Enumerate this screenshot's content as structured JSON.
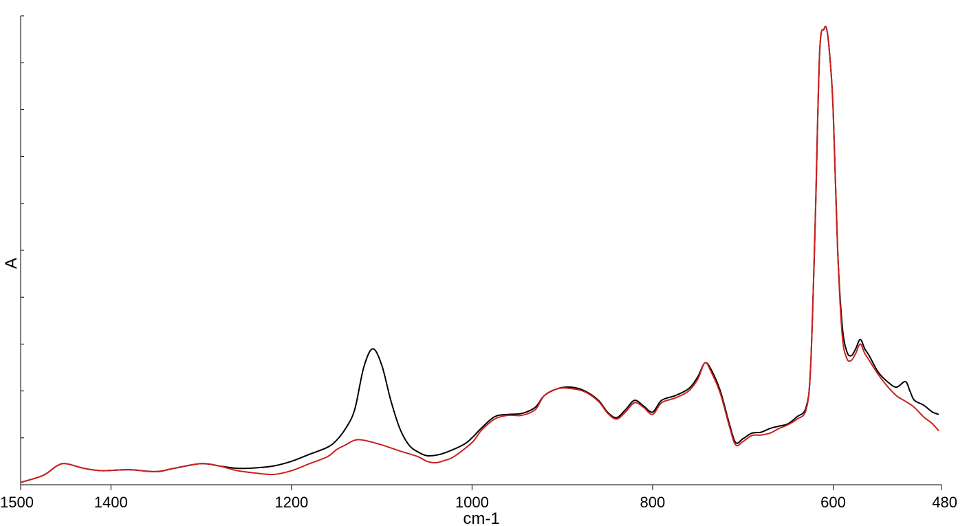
{
  "chart_data": {
    "type": "line",
    "title": "",
    "xlabel": "cm-1",
    "ylabel": "A",
    "xlim": [
      1500,
      480
    ],
    "x_reversed": true,
    "ylim": [
      0,
      1
    ],
    "y_ticks_labeled": false,
    "y_tick_count": 11,
    "grid": false,
    "legend": "none",
    "x_ticks": [
      1500,
      1400,
      1200,
      1000,
      800,
      600,
      480
    ],
    "x_tick_labels": [
      "1500",
      "1400",
      "1200",
      "1000",
      "800",
      "600",
      "480"
    ],
    "series": [
      {
        "color": "#000000",
        "points": [
          [
            1500,
            0.005
          ],
          [
            1475,
            0.02
          ],
          [
            1460,
            0.04
          ],
          [
            1450,
            0.045
          ],
          [
            1430,
            0.035
          ],
          [
            1410,
            0.03
          ],
          [
            1380,
            0.032
          ],
          [
            1350,
            0.028
          ],
          [
            1330,
            0.035
          ],
          [
            1300,
            0.045
          ],
          [
            1280,
            0.04
          ],
          [
            1260,
            0.035
          ],
          [
            1240,
            0.036
          ],
          [
            1220,
            0.04
          ],
          [
            1200,
            0.05
          ],
          [
            1180,
            0.065
          ],
          [
            1160,
            0.08
          ],
          [
            1150,
            0.095
          ],
          [
            1140,
            0.12
          ],
          [
            1130,
            0.16
          ],
          [
            1120,
            0.25
          ],
          [
            1110,
            0.29
          ],
          [
            1100,
            0.255
          ],
          [
            1090,
            0.18
          ],
          [
            1080,
            0.12
          ],
          [
            1070,
            0.085
          ],
          [
            1060,
            0.07
          ],
          [
            1050,
            0.062
          ],
          [
            1040,
            0.063
          ],
          [
            1030,
            0.068
          ],
          [
            1010,
            0.085
          ],
          [
            1000,
            0.1
          ],
          [
            990,
            0.12
          ],
          [
            975,
            0.145
          ],
          [
            960,
            0.15
          ],
          [
            945,
            0.152
          ],
          [
            930,
            0.165
          ],
          [
            920,
            0.19
          ],
          [
            905,
            0.205
          ],
          [
            890,
            0.208
          ],
          [
            875,
            0.2
          ],
          [
            860,
            0.18
          ],
          [
            850,
            0.155
          ],
          [
            840,
            0.143
          ],
          [
            830,
            0.16
          ],
          [
            820,
            0.18
          ],
          [
            810,
            0.168
          ],
          [
            800,
            0.155
          ],
          [
            790,
            0.18
          ],
          [
            775,
            0.19
          ],
          [
            760,
            0.205
          ],
          [
            750,
            0.23
          ],
          [
            742,
            0.26
          ],
          [
            735,
            0.245
          ],
          [
            725,
            0.2
          ],
          [
            715,
            0.13
          ],
          [
            708,
            0.09
          ],
          [
            700,
            0.098
          ],
          [
            690,
            0.11
          ],
          [
            680,
            0.112
          ],
          [
            670,
            0.12
          ],
          [
            660,
            0.125
          ],
          [
            650,
            0.13
          ],
          [
            640,
            0.145
          ],
          [
            630,
            0.165
          ],
          [
            625,
            0.25
          ],
          [
            620,
            0.55
          ],
          [
            615,
            0.92
          ],
          [
            610,
            0.972
          ],
          [
            607,
            0.97
          ],
          [
            604,
            0.92
          ],
          [
            600,
            0.8
          ],
          [
            595,
            0.5
          ],
          [
            590,
            0.34
          ],
          [
            585,
            0.285
          ],
          [
            580,
            0.275
          ],
          [
            575,
            0.29
          ],
          [
            570,
            0.31
          ],
          [
            565,
            0.29
          ],
          [
            560,
            0.275
          ],
          [
            550,
            0.24
          ],
          [
            540,
            0.22
          ],
          [
            530,
            0.208
          ],
          [
            520,
            0.22
          ],
          [
            515,
            0.2
          ],
          [
            510,
            0.18
          ],
          [
            500,
            0.17
          ],
          [
            490,
            0.155
          ],
          [
            483,
            0.15
          ]
        ]
      },
      {
        "color": "#cc2020",
        "points": [
          [
            1500,
            0.005
          ],
          [
            1475,
            0.02
          ],
          [
            1460,
            0.04
          ],
          [
            1450,
            0.045
          ],
          [
            1430,
            0.035
          ],
          [
            1410,
            0.03
          ],
          [
            1380,
            0.032
          ],
          [
            1350,
            0.028
          ],
          [
            1330,
            0.035
          ],
          [
            1300,
            0.045
          ],
          [
            1280,
            0.04
          ],
          [
            1260,
            0.03
          ],
          [
            1240,
            0.025
          ],
          [
            1220,
            0.022
          ],
          [
            1200,
            0.03
          ],
          [
            1180,
            0.045
          ],
          [
            1160,
            0.06
          ],
          [
            1150,
            0.075
          ],
          [
            1140,
            0.085
          ],
          [
            1130,
            0.095
          ],
          [
            1120,
            0.095
          ],
          [
            1100,
            0.085
          ],
          [
            1080,
            0.072
          ],
          [
            1060,
            0.06
          ],
          [
            1050,
            0.05
          ],
          [
            1040,
            0.047
          ],
          [
            1030,
            0.052
          ],
          [
            1020,
            0.06
          ],
          [
            1000,
            0.09
          ],
          [
            990,
            0.115
          ],
          [
            975,
            0.14
          ],
          [
            960,
            0.148
          ],
          [
            945,
            0.148
          ],
          [
            930,
            0.16
          ],
          [
            920,
            0.19
          ],
          [
            905,
            0.205
          ],
          [
            890,
            0.205
          ],
          [
            875,
            0.198
          ],
          [
            860,
            0.178
          ],
          [
            850,
            0.153
          ],
          [
            840,
            0.14
          ],
          [
            830,
            0.155
          ],
          [
            820,
            0.175
          ],
          [
            810,
            0.165
          ],
          [
            800,
            0.15
          ],
          [
            790,
            0.175
          ],
          [
            775,
            0.185
          ],
          [
            760,
            0.2
          ],
          [
            750,
            0.225
          ],
          [
            742,
            0.26
          ],
          [
            735,
            0.24
          ],
          [
            725,
            0.195
          ],
          [
            715,
            0.125
          ],
          [
            708,
            0.085
          ],
          [
            700,
            0.092
          ],
          [
            690,
            0.105
          ],
          [
            680,
            0.106
          ],
          [
            670,
            0.11
          ],
          [
            660,
            0.12
          ],
          [
            650,
            0.128
          ],
          [
            640,
            0.14
          ],
          [
            630,
            0.16
          ],
          [
            625,
            0.25
          ],
          [
            620,
            0.55
          ],
          [
            615,
            0.92
          ],
          [
            610,
            0.972
          ],
          [
            607,
            0.97
          ],
          [
            604,
            0.92
          ],
          [
            600,
            0.8
          ],
          [
            595,
            0.5
          ],
          [
            590,
            0.32
          ],
          [
            585,
            0.27
          ],
          [
            580,
            0.265
          ],
          [
            575,
            0.28
          ],
          [
            570,
            0.3
          ],
          [
            565,
            0.28
          ],
          [
            560,
            0.265
          ],
          [
            550,
            0.235
          ],
          [
            540,
            0.21
          ],
          [
            530,
            0.19
          ],
          [
            520,
            0.178
          ],
          [
            510,
            0.165
          ],
          [
            500,
            0.145
          ],
          [
            490,
            0.13
          ],
          [
            483,
            0.115
          ]
        ]
      }
    ]
  }
}
